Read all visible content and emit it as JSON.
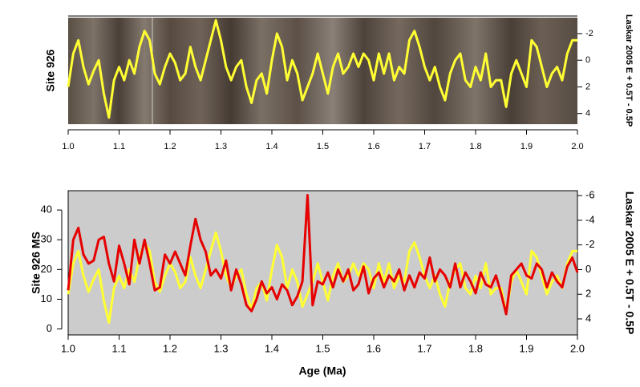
{
  "chart_data": [
    {
      "type": "line",
      "ylabel": "Site 926",
      "y2label": "Laskar 2005 E + 0.5T - 0.5P",
      "x": [
        1.0,
        1.01,
        1.02,
        1.03,
        1.04,
        1.05,
        1.06,
        1.07,
        1.08,
        1.09,
        1.1,
        1.11,
        1.12,
        1.13,
        1.14,
        1.15,
        1.16,
        1.17,
        1.18,
        1.19,
        1.2,
        1.21,
        1.22,
        1.23,
        1.24,
        1.25,
        1.26,
        1.27,
        1.28,
        1.29,
        1.3,
        1.31,
        1.32,
        1.33,
        1.34,
        1.35,
        1.36,
        1.37,
        1.38,
        1.39,
        1.4,
        1.41,
        1.42,
        1.43,
        1.44,
        1.45,
        1.46,
        1.47,
        1.48,
        1.49,
        1.5,
        1.51,
        1.52,
        1.53,
        1.54,
        1.55,
        1.56,
        1.57,
        1.58,
        1.59,
        1.6,
        1.61,
        1.62,
        1.63,
        1.64,
        1.65,
        1.66,
        1.67,
        1.68,
        1.69,
        1.7,
        1.71,
        1.72,
        1.73,
        1.74,
        1.75,
        1.76,
        1.77,
        1.78,
        1.79,
        1.8,
        1.81,
        1.82,
        1.83,
        1.84,
        1.85,
        1.86,
        1.87,
        1.88,
        1.89,
        1.9,
        1.91,
        1.92,
        1.93,
        1.94,
        1.95,
        1.96,
        1.97,
        1.98,
        1.99,
        2.0
      ],
      "xlim": [
        1,
        2
      ],
      "xticks": [
        {
          "value": 1,
          "label": "1.0"
        },
        1.1,
        1.2,
        1.3,
        1.4,
        1.5,
        1.6,
        1.7,
        1.8,
        1.9,
        {
          "value": 2,
          "label": "2.0"
        }
      ],
      "y2lim": [
        4.8,
        -3.2
      ],
      "y2ticks": [
        -2,
        0,
        2,
        4
      ],
      "series": [
        {
          "color": "#ffff33",
          "axis": "y2",
          "values": [
            2,
            -0.5,
            -1.5,
            0.5,
            1.8,
            0.8,
            0,
            2.5,
            4.3,
            1.5,
            0.5,
            1.5,
            0,
            1,
            -1,
            -2.2,
            -1.5,
            1,
            1.8,
            0.5,
            -0.5,
            0.2,
            1.5,
            1,
            -1,
            0.5,
            1.5,
            0,
            -1.5,
            -3,
            -1.5,
            0.5,
            1.5,
            0.5,
            0,
            2,
            3.2,
            1.5,
            1,
            2.5,
            0,
            -2,
            -1,
            1.5,
            0,
            1,
            3,
            2,
            1,
            -0.5,
            1,
            2.5,
            0.5,
            -0.5,
            1,
            0.5,
            -0.5,
            0.5,
            -0.5,
            0,
            1.5,
            -0.5,
            1,
            -0.5,
            1.5,
            0.5,
            1,
            -1.5,
            -2.2,
            -1,
            0.5,
            1.5,
            0.5,
            2,
            3,
            1,
            0,
            -0.5,
            1.5,
            2,
            0.5,
            1.5,
            -0.5,
            2,
            1.5,
            1.5,
            3.5,
            1,
            0,
            1,
            2,
            -1.5,
            -1,
            0.5,
            2,
            1,
            0.5,
            1.5,
            -0.5,
            -1.5,
            -1.5
          ]
        }
      ]
    },
    {
      "type": "line",
      "xlabel": "Age (Ma)",
      "ylabel": "Site 926 MS",
      "y2label": "Laskar 2005 E + 0.5T - 0.5P",
      "x": [
        1.0,
        1.01,
        1.02,
        1.03,
        1.04,
        1.05,
        1.06,
        1.07,
        1.08,
        1.09,
        1.1,
        1.11,
        1.12,
        1.13,
        1.14,
        1.15,
        1.16,
        1.17,
        1.18,
        1.19,
        1.2,
        1.21,
        1.22,
        1.23,
        1.24,
        1.25,
        1.26,
        1.27,
        1.28,
        1.29,
        1.3,
        1.31,
        1.32,
        1.33,
        1.34,
        1.35,
        1.36,
        1.37,
        1.38,
        1.39,
        1.4,
        1.41,
        1.42,
        1.43,
        1.44,
        1.45,
        1.46,
        1.47,
        1.48,
        1.49,
        1.5,
        1.51,
        1.52,
        1.53,
        1.54,
        1.55,
        1.56,
        1.57,
        1.58,
        1.59,
        1.6,
        1.61,
        1.62,
        1.63,
        1.64,
        1.65,
        1.66,
        1.67,
        1.68,
        1.69,
        1.7,
        1.71,
        1.72,
        1.73,
        1.74,
        1.75,
        1.76,
        1.77,
        1.78,
        1.79,
        1.8,
        1.81,
        1.82,
        1.83,
        1.84,
        1.85,
        1.86,
        1.87,
        1.88,
        1.89,
        1.9,
        1.91,
        1.92,
        1.93,
        1.94,
        1.95,
        1.96,
        1.97,
        1.98,
        1.99,
        2.0
      ],
      "xlim": [
        1,
        2
      ],
      "xticks": [
        {
          "value": 1,
          "label": "1.0"
        },
        1.1,
        1.2,
        1.3,
        1.4,
        1.5,
        1.6,
        1.7,
        1.8,
        1.9,
        {
          "value": 2,
          "label": "2.0"
        }
      ],
      "ylim": [
        -2,
        46.5
      ],
      "yticks": [
        0,
        10,
        20,
        30,
        40
      ],
      "y2lim": [
        5.3,
        -6.4
      ],
      "y2ticks": [
        -6,
        -4,
        -2,
        0,
        2,
        4
      ],
      "series": [
        {
          "color": "#ffff33",
          "axis": "y2",
          "values": [
            2,
            -0.5,
            -1.5,
            0.5,
            1.8,
            0.8,
            0,
            2.5,
            4.3,
            1.5,
            0.5,
            1.5,
            0,
            1,
            -1,
            -2.2,
            -1.5,
            1,
            1.8,
            0.5,
            -0.5,
            0.2,
            1.5,
            1,
            -1,
            0.5,
            1.5,
            0,
            -1.5,
            -3,
            -1.5,
            0.5,
            1.5,
            0.5,
            0,
            2,
            3.2,
            1.5,
            1,
            2.5,
            0,
            -2,
            -1,
            1.5,
            0,
            1,
            3,
            2,
            1,
            -0.5,
            1,
            2.5,
            0.5,
            -0.5,
            1,
            0.5,
            -0.5,
            0.5,
            -0.5,
            0,
            1.5,
            -0.5,
            1,
            -0.5,
            1.5,
            0.5,
            1,
            -1.5,
            -2.2,
            -1,
            0.5,
            1.5,
            0.5,
            2,
            3,
            1,
            0,
            -0.5,
            1.5,
            2,
            0.5,
            1.5,
            -0.5,
            2,
            1.5,
            1.5,
            3.5,
            1,
            0,
            1,
            2,
            -1.5,
            -1,
            0.5,
            2,
            1,
            0.5,
            1.5,
            -0.5,
            -1.5,
            -1.5
          ]
        },
        {
          "color": "#e60000",
          "values": [
            13,
            30,
            34,
            25,
            22,
            23,
            30,
            31,
            22,
            16,
            28,
            22,
            15,
            30,
            22,
            30,
            22,
            13,
            14,
            25,
            22,
            26,
            22,
            18,
            28,
            37,
            30,
            26,
            18,
            20,
            17,
            23,
            13,
            20,
            15,
            8,
            6,
            10,
            16,
            12,
            14,
            10,
            15,
            13,
            8,
            11,
            16,
            45,
            8,
            16,
            15,
            19,
            14,
            20,
            16,
            20,
            13,
            15,
            21,
            12,
            17,
            19,
            14,
            18,
            16,
            20,
            13,
            18,
            14,
            19,
            17,
            24,
            16,
            20,
            18,
            14,
            22,
            14,
            19,
            16,
            12,
            19,
            15,
            14,
            18,
            12,
            5,
            18,
            20,
            22,
            18,
            17,
            22,
            20,
            14,
            19,
            16,
            14,
            21,
            24,
            19
          ]
        }
      ]
    }
  ]
}
